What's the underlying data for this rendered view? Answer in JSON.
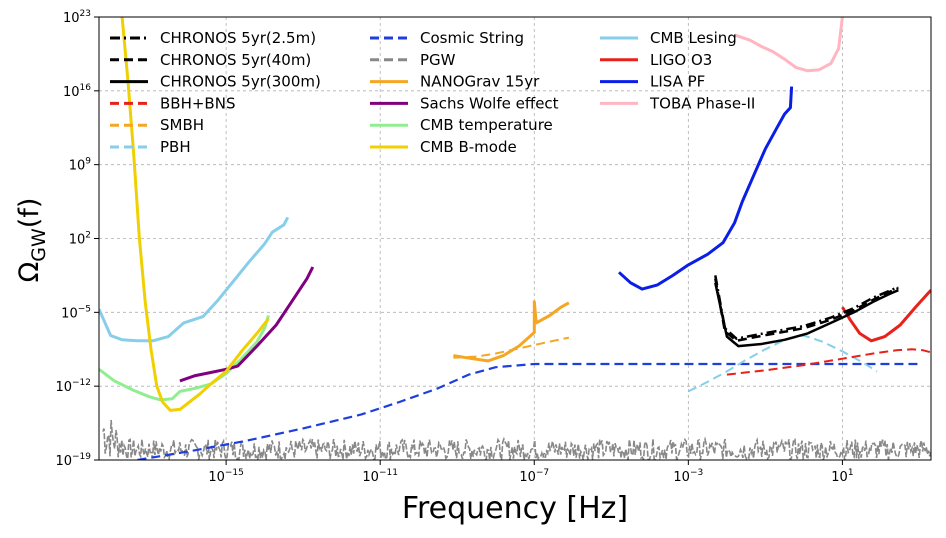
{
  "chart_data": {
    "type": "line",
    "xlabel": "Frequency [Hz]",
    "ylabel_main": "Ω",
    "ylabel_sub": "GW",
    "ylabel_tail": "(f)",
    "x_log_range": [
      -18.3,
      3.3
    ],
    "y_log_range": [
      -19,
      23
    ],
    "x_ticks": [
      {
        "exp": -15,
        "base": "10",
        "sup": "−15"
      },
      {
        "exp": -11,
        "base": "10",
        "sup": "−11"
      },
      {
        "exp": -7,
        "base": "10",
        "sup": "−7"
      },
      {
        "exp": -3,
        "base": "10",
        "sup": "−3"
      },
      {
        "exp": 1,
        "base": "10",
        "sup": "1"
      }
    ],
    "y_ticks": [
      {
        "exp": 23,
        "base": "10",
        "sup": "23"
      },
      {
        "exp": 16,
        "base": "10",
        "sup": "16"
      },
      {
        "exp": 9,
        "base": "10",
        "sup": "9"
      },
      {
        "exp": 2,
        "base": "10",
        "sup": "2"
      },
      {
        "exp": -5,
        "base": "10",
        "sup": "−5"
      },
      {
        "exp": -12,
        "base": "10",
        "sup": "−12"
      },
      {
        "exp": -19,
        "base": "10",
        "sup": "−19"
      }
    ],
    "grid": true,
    "legend_position": "top-left",
    "series": [
      {
        "name": "CHRONOS 5yr(2.5m)",
        "color": "#000000",
        "dash": "dashdot",
        "width": 2.5,
        "points": [
          [
            -2.3,
            -1.5
          ],
          [
            -2.05,
            -6.5
          ],
          [
            -1.75,
            -7.5
          ],
          [
            -1.2,
            -7.1
          ],
          [
            -0.6,
            -6.7
          ],
          [
            0.0,
            -6.3
          ],
          [
            0.7,
            -5.5
          ],
          [
            1.3,
            -4.6
          ],
          [
            1.8,
            -3.6
          ],
          [
            2.2,
            -3.0
          ],
          [
            2.45,
            -2.6
          ]
        ]
      },
      {
        "name": "CHRONOS 5yr(40m)",
        "color": "#000000",
        "dash": "dash",
        "width": 2.5,
        "points": [
          [
            -2.3,
            -1.8
          ],
          [
            -2.05,
            -6.8
          ],
          [
            -1.75,
            -7.7
          ],
          [
            -1.2,
            -7.3
          ],
          [
            -0.6,
            -6.9
          ],
          [
            0.0,
            -6.5
          ],
          [
            0.7,
            -5.7
          ],
          [
            1.3,
            -4.8
          ],
          [
            1.8,
            -3.8
          ],
          [
            2.2,
            -3.1
          ],
          [
            2.45,
            -2.7
          ]
        ]
      },
      {
        "name": "CHRONOS 5yr(300m)",
        "color": "#000000",
        "dash": "solid",
        "width": 2.5,
        "points": [
          [
            -2.3,
            -2.2
          ],
          [
            -2.0,
            -7.3
          ],
          [
            -1.7,
            -8.2
          ],
          [
            -1.1,
            -8.0
          ],
          [
            -0.5,
            -7.6
          ],
          [
            0.1,
            -7.0
          ],
          [
            0.7,
            -6.0
          ],
          [
            1.3,
            -5.0
          ],
          [
            1.8,
            -4.0
          ],
          [
            2.2,
            -3.3
          ],
          [
            2.45,
            -2.9
          ]
        ]
      },
      {
        "name": "BBH+BNS",
        "color": "#e8211a",
        "dash": "dash",
        "width": 2,
        "points": [
          [
            -2.0,
            -10.9
          ],
          [
            -1.0,
            -10.5
          ],
          [
            0.0,
            -10.0
          ],
          [
            1.0,
            -9.4
          ],
          [
            1.8,
            -8.9
          ],
          [
            2.4,
            -8.6
          ],
          [
            2.8,
            -8.5
          ],
          [
            3.1,
            -8.6
          ],
          [
            3.3,
            -8.8
          ]
        ]
      },
      {
        "name": "SMBH",
        "color": "#f5a623",
        "dash": "dash",
        "width": 2,
        "points": [
          [
            -9.1,
            -9.3
          ],
          [
            -8.5,
            -9.2
          ],
          [
            -8.0,
            -8.9
          ],
          [
            -7.5,
            -8.5
          ],
          [
            -7.0,
            -8.1
          ],
          [
            -6.5,
            -7.7
          ],
          [
            -6.1,
            -7.4
          ]
        ]
      },
      {
        "name": "PBH",
        "color": "#87ceeb",
        "dash": "dash",
        "width": 2,
        "points": [
          [
            -3.0,
            -12.5
          ],
          [
            -2.5,
            -11.6
          ],
          [
            -2.0,
            -10.6
          ],
          [
            -1.5,
            -9.5
          ],
          [
            -1.0,
            -8.5
          ],
          [
            -0.5,
            -7.6
          ],
          [
            0.0,
            -7.2
          ],
          [
            0.5,
            -7.8
          ],
          [
            1.0,
            -8.7
          ],
          [
            1.5,
            -9.7
          ],
          [
            1.9,
            -10.6
          ]
        ]
      },
      {
        "name": "Cosmic String",
        "color": "#1f3fdc",
        "dash": "dash",
        "width": 2.2,
        "points": [
          [
            -17.3,
            -19.0
          ],
          [
            -16.0,
            -18.2
          ],
          [
            -14.5,
            -17.2
          ],
          [
            -13.0,
            -16.0
          ],
          [
            -11.5,
            -14.7
          ],
          [
            -10.5,
            -13.5
          ],
          [
            -9.5,
            -12.2
          ],
          [
            -8.7,
            -10.9
          ],
          [
            -8.0,
            -10.2
          ],
          [
            -7.0,
            -9.9
          ],
          [
            -5.0,
            -9.9
          ],
          [
            -2.0,
            -9.9
          ],
          [
            0.0,
            -9.9
          ],
          [
            2.0,
            -9.9
          ],
          [
            3.0,
            -9.9
          ]
        ]
      },
      {
        "name": "PGW",
        "color": "#888888",
        "dash": "dash",
        "width": 2.2,
        "points": []
      },
      {
        "name": "NANOGrav 15yr",
        "color": "#f5a623",
        "dash": "solid",
        "width": 3,
        "points": [
          [
            -9.1,
            -9.1
          ],
          [
            -8.6,
            -9.4
          ],
          [
            -8.2,
            -9.6
          ],
          [
            -7.8,
            -9.1
          ],
          [
            -7.4,
            -8.2
          ],
          [
            -7.15,
            -7.4
          ],
          [
            -7.0,
            -6.9
          ],
          [
            -7.0,
            -6.2
          ],
          [
            -7.0,
            -4.0
          ],
          [
            -6.95,
            -6.0
          ],
          [
            -6.6,
            -5.3
          ],
          [
            -6.3,
            -4.5
          ],
          [
            -6.1,
            -4.1
          ]
        ]
      },
      {
        "name": "Sachs Wolfe effect",
        "color": "#800080",
        "dash": "solid",
        "width": 3,
        "points": [
          [
            -16.2,
            -11.5
          ],
          [
            -15.8,
            -11.0
          ],
          [
            -15.4,
            -10.7
          ],
          [
            -15.0,
            -10.4
          ],
          [
            -14.7,
            -10.1
          ],
          [
            -14.2,
            -8.2
          ],
          [
            -13.7,
            -6.2
          ],
          [
            -13.3,
            -4.0
          ],
          [
            -12.9,
            -1.8
          ],
          [
            -12.75,
            -0.7
          ]
        ]
      },
      {
        "name": "CMB temperature",
        "color": "#90ee90",
        "dash": "solid",
        "width": 3,
        "points": [
          [
            -18.3,
            -10.4
          ],
          [
            -17.9,
            -11.5
          ],
          [
            -17.4,
            -12.4
          ],
          [
            -17.0,
            -13.0
          ],
          [
            -16.7,
            -13.3
          ],
          [
            -16.4,
            -13.2
          ],
          [
            -16.2,
            -12.5
          ],
          [
            -15.8,
            -12.2
          ],
          [
            -15.4,
            -11.8
          ],
          [
            -15.0,
            -10.8
          ],
          [
            -14.6,
            -9.4
          ],
          [
            -14.2,
            -7.8
          ],
          [
            -14.0,
            -6.5
          ],
          [
            -13.9,
            -5.3
          ]
        ]
      },
      {
        "name": "CMB B-mode",
        "color": "#f0d000",
        "dash": "solid",
        "width": 3,
        "points": [
          [
            -17.7,
            23.0
          ],
          [
            -17.55,
            17.0
          ],
          [
            -17.4,
            10.0
          ],
          [
            -17.25,
            2.0
          ],
          [
            -17.1,
            -4.0
          ],
          [
            -16.95,
            -8.5
          ],
          [
            -16.8,
            -12.0
          ],
          [
            -16.65,
            -13.5
          ],
          [
            -16.45,
            -14.3
          ],
          [
            -16.2,
            -14.2
          ],
          [
            -15.95,
            -13.5
          ],
          [
            -15.7,
            -12.8
          ],
          [
            -15.4,
            -11.8
          ],
          [
            -15.0,
            -10.6
          ],
          [
            -14.6,
            -8.7
          ],
          [
            -14.2,
            -7.0
          ],
          [
            -13.9,
            -5.6
          ]
        ]
      },
      {
        "name": "CMB Lesing",
        "color": "#87ceeb",
        "dash": "solid",
        "width": 3,
        "points": [
          [
            -18.3,
            -4.7
          ],
          [
            -18.0,
            -7.2
          ],
          [
            -17.7,
            -7.6
          ],
          [
            -17.3,
            -7.7
          ],
          [
            -16.9,
            -7.7
          ],
          [
            -16.5,
            -7.3
          ],
          [
            -16.1,
            -6.0
          ],
          [
            -15.6,
            -5.4
          ],
          [
            -15.2,
            -3.8
          ],
          [
            -14.8,
            -2.0
          ],
          [
            -14.4,
            -0.2
          ],
          [
            -14.0,
            1.5
          ],
          [
            -13.8,
            2.6
          ],
          [
            -13.5,
            3.3
          ],
          [
            -13.4,
            4.0
          ]
        ]
      },
      {
        "name": "LIGO O3",
        "color": "#e8211a",
        "dash": "solid",
        "width": 3,
        "points": [
          [
            1.0,
            -4.5
          ],
          [
            1.2,
            -5.7
          ],
          [
            1.45,
            -7.0
          ],
          [
            1.75,
            -7.7
          ],
          [
            2.1,
            -7.3
          ],
          [
            2.5,
            -6.2
          ],
          [
            2.9,
            -4.5
          ],
          [
            3.2,
            -3.3
          ],
          [
            3.3,
            -2.9
          ]
        ]
      },
      {
        "name": "LISA PF",
        "color": "#0a1ee6",
        "dash": "solid",
        "width": 3,
        "points": [
          [
            -4.8,
            -1.2
          ],
          [
            -4.5,
            -2.2
          ],
          [
            -4.2,
            -2.8
          ],
          [
            -3.8,
            -2.4
          ],
          [
            -3.4,
            -1.5
          ],
          [
            -3.0,
            -0.5
          ],
          [
            -2.5,
            0.5
          ],
          [
            -2.1,
            1.6
          ],
          [
            -1.8,
            3.5
          ],
          [
            -1.6,
            5.5
          ],
          [
            -1.3,
            8.0
          ],
          [
            -1.0,
            10.5
          ],
          [
            -0.7,
            12.5
          ],
          [
            -0.5,
            13.8
          ],
          [
            -0.35,
            14.4
          ],
          [
            -0.32,
            16.4
          ]
        ]
      },
      {
        "name": "TOBA Phase-II",
        "color": "#ffb6c1",
        "dash": "solid",
        "width": 3,
        "points": [
          [
            -1.8,
            21.3
          ],
          [
            -1.4,
            20.8
          ],
          [
            -1.1,
            20.2
          ],
          [
            -0.8,
            19.7
          ],
          [
            -0.5,
            19.0
          ],
          [
            -0.2,
            18.2
          ],
          [
            0.1,
            17.9
          ],
          [
            0.4,
            18.0
          ],
          [
            0.7,
            18.6
          ],
          [
            0.9,
            20.0
          ],
          [
            1.0,
            23.0
          ]
        ]
      }
    ],
    "pgw_noise": {
      "x_start": -18.2,
      "x_end": 3.3,
      "y_high": -17.0,
      "y_low": -19.0
    }
  }
}
